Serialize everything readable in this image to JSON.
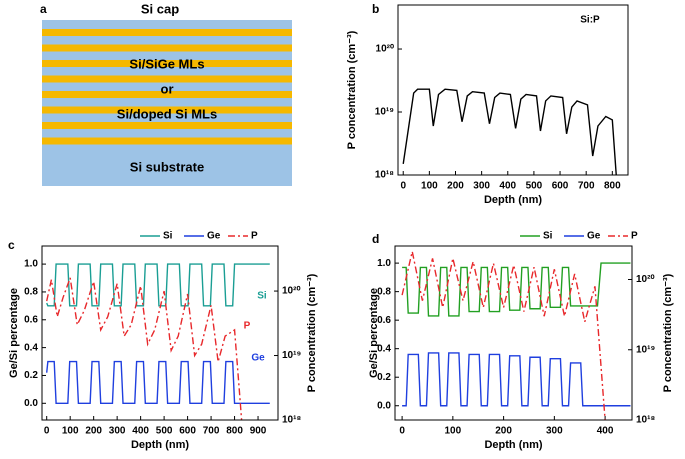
{
  "diagram": {
    "panel_label": "a",
    "top_label": "Si cap",
    "middle_labels": [
      "Si/SiGe MLs",
      "or",
      "Si/doped Si MLs"
    ],
    "bottom_label": "Si substrate"
  },
  "chart_data": [
    {
      "type": "line",
      "panel_label": "b",
      "xlabel": "Depth (nm)",
      "ylabel": "P concentration (cm⁻³)",
      "annotations": [
        {
          "text": "Si:P",
          "color": "#000000"
        }
      ],
      "xlim": [
        -20,
        860
      ],
      "xticks": [
        0,
        100,
        200,
        300,
        400,
        500,
        600,
        700,
        800
      ],
      "ylim": [
        1e+18,
        5e+20
      ],
      "ylog": true,
      "yticks": [
        {
          "value": 1e+18,
          "label": "10¹⁸"
        },
        {
          "value": 1e+19,
          "label": "10¹⁹"
        },
        {
          "value": 1e+20,
          "label": "10²⁰"
        }
      ],
      "series": [
        {
          "color": "#000000",
          "dash": "solid",
          "x": [
            0,
            40,
            55,
            100,
            115,
            135,
            160,
            205,
            225,
            245,
            265,
            310,
            330,
            350,
            370,
            410,
            430,
            450,
            470,
            510,
            525,
            545,
            565,
            610,
            625,
            645,
            665,
            705,
            725,
            745,
            775,
            800,
            815
          ],
          "values": [
            1.5e+18,
            2e+19,
            2.3e+19,
            2.3e+19,
            6e+18,
            1.9e+19,
            2.3e+19,
            2.2e+19,
            7e+18,
            1.8e+19,
            2.1e+19,
            2e+19,
            6.5e+18,
            1.7e+19,
            2e+19,
            1.9e+19,
            5.5e+18,
            1.6e+19,
            1.9e+19,
            1.8e+19,
            5e+18,
            1.5e+19,
            1.8e+19,
            1.7e+19,
            4.5e+18,
            1.2e+19,
            1.5e+19,
            1.3e+19,
            2e+18,
            6e+18,
            8.5e+18,
            7.5e+18,
            1e+18
          ]
        }
      ]
    },
    {
      "type": "line",
      "panel_label": "c",
      "xlabel": "Depth (nm)",
      "ylabel": "Ge/Si percentage",
      "y2label": "P concentration (cm⁻³)",
      "annotations": [
        {
          "text": "Si",
          "color": "#1a9e94"
        },
        {
          "text": "P",
          "color": "#e8282b"
        },
        {
          "text": "Ge",
          "color": "#1f3fdf"
        }
      ],
      "xlim": [
        -20,
        985
      ],
      "xticks": [
        0,
        100,
        200,
        300,
        400,
        500,
        600,
        700,
        800,
        900
      ],
      "ylim": [
        -0.12,
        1.13
      ],
      "yticks": [
        {
          "value": 0,
          "label": "0.0"
        },
        {
          "value": 0.2,
          "label": "0.2"
        },
        {
          "value": 0.4,
          "label": "0.4"
        },
        {
          "value": 0.6,
          "label": "0.6"
        },
        {
          "value": 0.8,
          "label": "0.8"
        },
        {
          "value": 1,
          "label": "1.0"
        }
      ],
      "y2lim": [
        1e+18,
        5e+20
      ],
      "y2log": true,
      "y2ticks": [
        {
          "value": 1e+18,
          "label": "10¹⁸"
        },
        {
          "value": 1e+19,
          "label": "10¹⁹"
        },
        {
          "value": 1e+20,
          "label": "10²⁰"
        }
      ],
      "series": [
        {
          "name": "Si",
          "color": "#1a9e94",
          "dash": "solid",
          "x": [
            0,
            5,
            32,
            40,
            90,
            98,
            127,
            135,
            185,
            193,
            222,
            230,
            280,
            288,
            317,
            325,
            375,
            383,
            412,
            420,
            470,
            478,
            507,
            515,
            565,
            573,
            602,
            610,
            660,
            668,
            697,
            705,
            755,
            763,
            792,
            800,
            950
          ],
          "values": [
            0.72,
            0.7,
            0.7,
            1,
            1,
            0.7,
            0.7,
            1,
            1,
            0.7,
            0.7,
            1,
            1,
            0.7,
            0.7,
            1,
            1,
            0.7,
            0.7,
            1,
            1,
            0.7,
            0.7,
            1,
            1,
            0.7,
            0.7,
            1,
            1,
            0.7,
            0.7,
            1,
            1,
            0.7,
            0.7,
            1,
            1
          ]
        },
        {
          "name": "Ge",
          "color": "#1f3fdf",
          "dash": "solid",
          "x": [
            0,
            5,
            32,
            40,
            90,
            98,
            127,
            135,
            185,
            193,
            222,
            230,
            280,
            288,
            317,
            325,
            375,
            383,
            412,
            420,
            470,
            478,
            507,
            515,
            565,
            573,
            602,
            610,
            660,
            668,
            697,
            705,
            755,
            763,
            792,
            800,
            950
          ],
          "values": [
            0.22,
            0.3,
            0.3,
            0,
            0,
            0.3,
            0.3,
            0,
            0,
            0.3,
            0.3,
            0,
            0,
            0.3,
            0.3,
            0,
            0,
            0.3,
            0.3,
            0,
            0,
            0.3,
            0.3,
            0,
            0,
            0.3,
            0.3,
            0,
            0,
            0.3,
            0.3,
            0,
            0,
            0.3,
            0.3,
            0,
            0
          ]
        },
        {
          "name": "P",
          "color": "#e8282b",
          "dash": "dashdot",
          "axis": "y2",
          "x": [
            0,
            20,
            45,
            70,
            100,
            130,
            160,
            200,
            230,
            260,
            300,
            330,
            360,
            400,
            430,
            460,
            500,
            530,
            560,
            600,
            630,
            660,
            700,
            730,
            760,
            800,
            820,
            830
          ],
          "values": [
            7e+19,
            1.5e+20,
            4e+19,
            8e+19,
            1.6e+20,
            3e+19,
            5e+19,
            1.4e+20,
            2.5e+19,
            4e+19,
            1.3e+20,
            2e+19,
            3e+19,
            1.2e+20,
            1.5e+19,
            2.5e+19,
            1e+20,
            1.2e+19,
            2e+19,
            9e+19,
            1e+19,
            1.5e+19,
            6e+19,
            8e+18,
            2e+19,
            2.5e+19,
            3e+18,
            1e+18
          ]
        }
      ]
    },
    {
      "type": "line",
      "panel_label": "d",
      "xlabel": "Depth (nm)",
      "ylabel": "Ge/Si percentage",
      "y2label": "P concentration (cm⁻³)",
      "xlim": [
        -14,
        453
      ],
      "xticks": [
        0,
        100,
        200,
        300,
        400
      ],
      "ylim": [
        -0.1,
        1.12
      ],
      "yticks": [
        {
          "value": 0,
          "label": "0.0"
        },
        {
          "value": 0.2,
          "label": "0.2"
        },
        {
          "value": 0.4,
          "label": "0.4"
        },
        {
          "value": 0.6,
          "label": "0.6"
        },
        {
          "value": 0.8,
          "label": "0.8"
        },
        {
          "value": 1,
          "label": "1.0"
        }
      ],
      "y2lim": [
        1e+18,
        3e+20
      ],
      "y2log": true,
      "y2ticks": [
        {
          "value": 1e+18,
          "label": "10¹⁸"
        },
        {
          "value": 1e+19,
          "label": "10¹⁹"
        },
        {
          "value": 1e+20,
          "label": "10²⁰"
        }
      ],
      "series": [
        {
          "name": "Si",
          "color": "#22a022",
          "dash": "solid",
          "x": [
            0,
            8,
            12,
            32,
            36,
            48,
            52,
            72,
            76,
            88,
            92,
            112,
            116,
            128,
            132,
            152,
            156,
            168,
            172,
            192,
            196,
            208,
            212,
            232,
            236,
            248,
            252,
            272,
            276,
            288,
            292,
            312,
            316,
            328,
            332,
            352,
            356,
            385,
            392,
            450
          ],
          "values": [
            0.97,
            0.97,
            0.65,
            0.65,
            0.97,
            0.97,
            0.63,
            0.63,
            0.97,
            0.97,
            0.63,
            0.63,
            0.97,
            0.97,
            0.66,
            0.66,
            0.97,
            0.97,
            0.66,
            0.66,
            0.97,
            0.97,
            0.67,
            0.67,
            0.97,
            0.97,
            0.68,
            0.68,
            0.97,
            0.97,
            0.69,
            0.69,
            0.97,
            0.97,
            0.7,
            0.7,
            0.7,
            0.7,
            1,
            1
          ]
        },
        {
          "name": "Ge",
          "color": "#1f3fdf",
          "dash": "solid",
          "x": [
            0,
            8,
            12,
            32,
            36,
            48,
            52,
            72,
            76,
            88,
            92,
            112,
            116,
            128,
            132,
            152,
            156,
            168,
            172,
            192,
            196,
            208,
            212,
            232,
            236,
            248,
            252,
            272,
            276,
            288,
            292,
            312,
            316,
            328,
            332,
            352,
            356,
            385,
            392,
            450
          ],
          "values": [
            0,
            0,
            0.36,
            0.36,
            0,
            0,
            0.37,
            0.37,
            0,
            0,
            0.37,
            0.37,
            0,
            0,
            0.36,
            0.36,
            0,
            0,
            0.36,
            0.36,
            0,
            0,
            0.35,
            0.35,
            0,
            0,
            0.34,
            0.34,
            0,
            0,
            0.33,
            0.33,
            0,
            0,
            0.3,
            0.3,
            0,
            0,
            0,
            0
          ]
        },
        {
          "name": "P",
          "color": "#e8282b",
          "dash": "dashdot",
          "axis": "y2",
          "x": [
            0,
            20,
            40,
            60,
            80,
            100,
            120,
            140,
            160,
            180,
            200,
            220,
            240,
            260,
            280,
            300,
            320,
            340,
            360,
            380,
            400
          ],
          "values": [
            6e+19,
            2.5e+20,
            5e+19,
            2e+20,
            4e+19,
            2e+20,
            5e+19,
            1.8e+20,
            4e+19,
            1.7e+20,
            4e+19,
            1.6e+20,
            3.5e+19,
            1.5e+20,
            3e+19,
            1.4e+20,
            3e+19,
            1.2e+20,
            2.5e+19,
            8e+19,
            1e+18
          ]
        }
      ]
    }
  ]
}
